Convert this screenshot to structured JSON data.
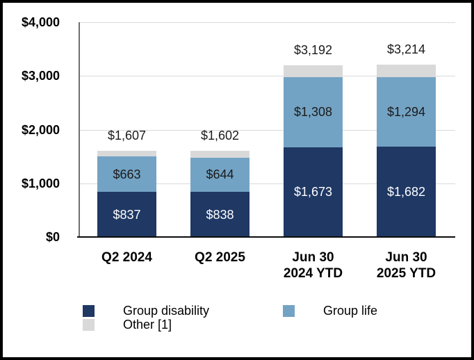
{
  "chart_data": {
    "type": "bar",
    "stacked": true,
    "title": "",
    "xlabel": "",
    "ylabel": "",
    "grid": true,
    "categories": [
      [
        "Q2 2024"
      ],
      [
        "Q2 2025"
      ],
      [
        "Jun 30",
        "2024 YTD"
      ],
      [
        "Jun 30",
        "2025 YTD"
      ]
    ],
    "series": [
      {
        "name": "Group disability",
        "color": "#1F3864",
        "values": [
          837,
          838,
          1673,
          1682
        ],
        "data_labels": [
          "$837",
          "$838",
          "$1,673",
          "$1,682"
        ],
        "label_color": "#FFFFFF"
      },
      {
        "name": "Group life",
        "color": "#73A3C4",
        "values": [
          663,
          644,
          1308,
          1294
        ],
        "data_labels": [
          "$663",
          "$644",
          "$1,308",
          "$1,294"
        ],
        "label_color": "#1A1A1A"
      },
      {
        "name": "Other [1]",
        "color": "#D9D9D9",
        "values": [
          107,
          120,
          211,
          238
        ],
        "data_labels": [
          "",
          "",
          "",
          ""
        ],
        "label_color": "#1A1A1A"
      }
    ],
    "totals": [
      "$1,607",
      "$1,602",
      "$3,192",
      "$3,214"
    ],
    "y_axis": {
      "ylim": [
        0,
        4000
      ],
      "ticks": [
        {
          "label": "$4,000",
          "value": 4000
        },
        {
          "label": "$3,000",
          "value": 3000
        },
        {
          "label": "$2,000",
          "value": 2000
        },
        {
          "label": "$1,000",
          "value": 1000
        },
        {
          "label": "$0",
          "value": 0
        }
      ]
    },
    "legend": {
      "position": "bottom-left",
      "columns": [
        [
          {
            "label": "Group disability",
            "color": "#1F3864"
          },
          {
            "label": "Other [1]",
            "color": "#D9D9D9"
          }
        ],
        [
          {
            "label": "Group life",
            "color": "#73A3C4"
          }
        ]
      ]
    }
  }
}
